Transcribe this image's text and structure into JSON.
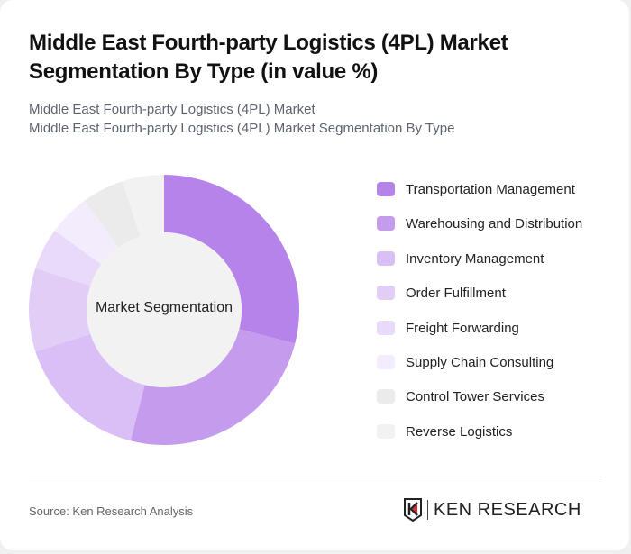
{
  "header": {
    "title": "Middle East Fourth-party Logistics (4PL) Market Segmentation By Type (in value %)",
    "subtitle_1": "Middle East Fourth-party Logistics (4PL) Market",
    "subtitle_2": "Middle East Fourth-party Logistics (4PL) Market Segmentation By Type"
  },
  "center_label": "Market Segmentation",
  "footer": {
    "source": "Source: Ken Research Analysis",
    "logo_text": "KEN RESEARCH",
    "logo_icon": "ken-research-k-shield-icon"
  },
  "chart_data": {
    "type": "pie",
    "subtype": "donut",
    "title": "Middle East Fourth-party Logistics (4PL) Market Segmentation By Type (in value %)",
    "center_text": "Market Segmentation",
    "legend_position": "right",
    "categories": [
      "Transportation Management",
      "Warehousing and Distribution",
      "Inventory Management",
      "Order Fulfillment",
      "Freight Forwarding",
      "Supply Chain Consulting",
      "Control Tower Services",
      "Reverse Logistics"
    ],
    "values": [
      29,
      25,
      16,
      10,
      5,
      5,
      5,
      5
    ],
    "colors": [
      "#b583e9",
      "#c59bed",
      "#d9bff5",
      "#e2cdf7",
      "#e9dafa",
      "#f3ecfc",
      "#ebebeb",
      "#f2f2f2"
    ],
    "unit": "%"
  }
}
